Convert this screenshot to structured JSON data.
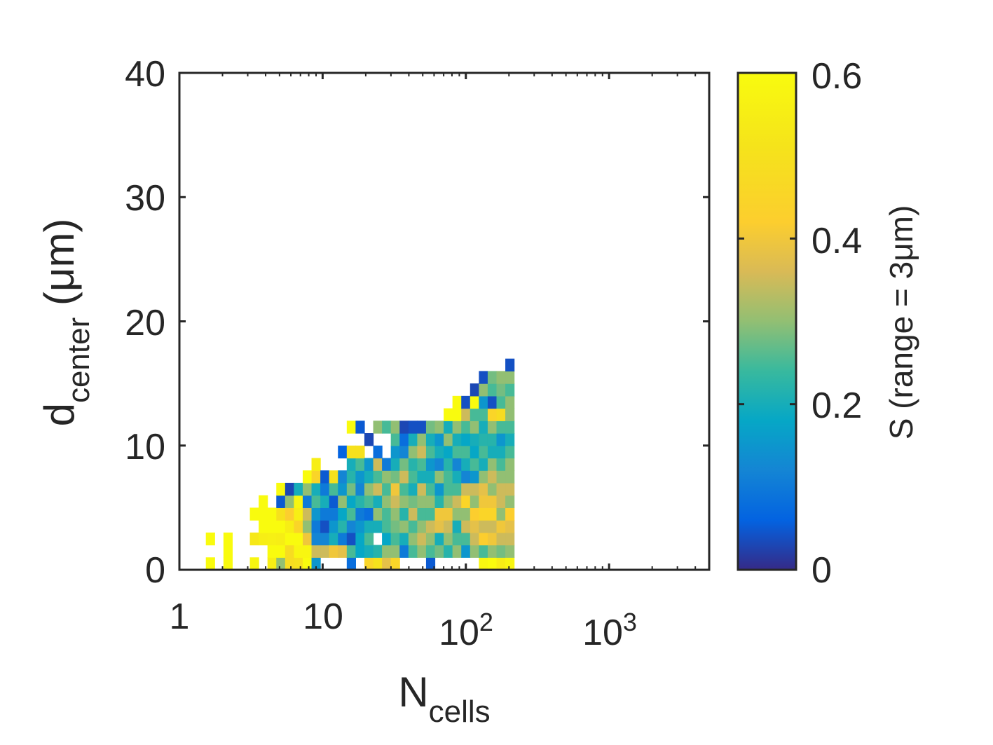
{
  "chart_data": {
    "type": "heatmap",
    "xscale": "log",
    "xlim": [
      1,
      5000
    ],
    "ylim": [
      0,
      40
    ],
    "grid": false,
    "xlabel": {
      "main": "N",
      "sub": "cells"
    },
    "ylabel": {
      "main": "d",
      "sub": "center",
      "unit": " (μm)"
    },
    "x_ticks": [
      {
        "value": 1,
        "label": "1",
        "sup": ""
      },
      {
        "value": 10,
        "label": "10",
        "sup": ""
      },
      {
        "value": 100,
        "label": "10",
        "sup": "2"
      },
      {
        "value": 1000,
        "label": "10",
        "sup": "3"
      }
    ],
    "y_ticks": [
      {
        "value": 0,
        "label": "0"
      },
      {
        "value": 10,
        "label": "10"
      },
      {
        "value": 20,
        "label": "20"
      },
      {
        "value": 30,
        "label": "30"
      },
      {
        "value": 40,
        "label": "40"
      }
    ],
    "colorbar": {
      "label": "S (range = 3μm)",
      "range": [
        0,
        0.6
      ],
      "ticks": [
        {
          "value": 0,
          "label": "0"
        },
        {
          "value": 0.2,
          "label": "0.2"
        },
        {
          "value": 0.4,
          "label": "0.4"
        },
        {
          "value": 0.6,
          "label": "0.6"
        }
      ],
      "colormap": "parula"
    },
    "bin_size": {
      "log10_n": 0.0615,
      "d_um": 1.0
    },
    "cells": [
      [
        3,
        0,
        0.6
      ],
      [
        3,
        2,
        0.6
      ],
      [
        5,
        0,
        0.6
      ],
      [
        5,
        1,
        0.6
      ],
      [
        5,
        2,
        0.6
      ],
      [
        8,
        0,
        0.58
      ],
      [
        8,
        2,
        0.53
      ],
      [
        8,
        4,
        0.6
      ],
      [
        9,
        2,
        0.55
      ],
      [
        9,
        3,
        0.6
      ],
      [
        9,
        4,
        0.6
      ],
      [
        9,
        5,
        0.6
      ],
      [
        10,
        0,
        0.55
      ],
      [
        10,
        1,
        0.6
      ],
      [
        10,
        2,
        0.56
      ],
      [
        10,
        3,
        0.6
      ],
      [
        10,
        4,
        0.6
      ],
      [
        11,
        0,
        0.3
      ],
      [
        11,
        1,
        0.6
      ],
      [
        11,
        2,
        0.55
      ],
      [
        11,
        3,
        0.6
      ],
      [
        11,
        4,
        0.5
      ],
      [
        11,
        5,
        0.05
      ],
      [
        11,
        6,
        0.6
      ],
      [
        12,
        0,
        0.48
      ],
      [
        12,
        1,
        0.48
      ],
      [
        12,
        2,
        0.6
      ],
      [
        12,
        3,
        0.55
      ],
      [
        12,
        4,
        0.42
      ],
      [
        12,
        5,
        0.3
      ],
      [
        12,
        6,
        0.03
      ],
      [
        13,
        0,
        0.5
      ],
      [
        13,
        1,
        0.58
      ],
      [
        13,
        2,
        0.6
      ],
      [
        13,
        3,
        0.45
      ],
      [
        13,
        4,
        0.55
      ],
      [
        13,
        5,
        0.58
      ],
      [
        13,
        6,
        0.2
      ],
      [
        14,
        0,
        0.6
      ],
      [
        14,
        1,
        0.58
      ],
      [
        14,
        2,
        0.4
      ],
      [
        14,
        3,
        0.3
      ],
      [
        14,
        4,
        0.35
      ],
      [
        14,
        5,
        0.1
      ],
      [
        14,
        6,
        0.3
      ],
      [
        14,
        7,
        0.6
      ],
      [
        15,
        0,
        0.15
      ],
      [
        15,
        1,
        0.35
      ],
      [
        15,
        2,
        0.12
      ],
      [
        15,
        3,
        0.1
      ],
      [
        15,
        4,
        0.15
      ],
      [
        15,
        5,
        0.25
      ],
      [
        15,
        6,
        0.2
      ],
      [
        15,
        7,
        0.45
      ],
      [
        15,
        8,
        0.55
      ],
      [
        16,
        1,
        0.35
      ],
      [
        16,
        2,
        0.12
      ],
      [
        16,
        3,
        0.04
      ],
      [
        16,
        4,
        0.1
      ],
      [
        16,
        5,
        0.2
      ],
      [
        16,
        6,
        0.1
      ],
      [
        16,
        7,
        0.05
      ],
      [
        17,
        1,
        0.4
      ],
      [
        17,
        2,
        0.2
      ],
      [
        17,
        3,
        0.15
      ],
      [
        17,
        4,
        0.1
      ],
      [
        17,
        5,
        0.05
      ],
      [
        17,
        6,
        0.25
      ],
      [
        17,
        7,
        0.5
      ],
      [
        18,
        1,
        0.38
      ],
      [
        18,
        2,
        0.1
      ],
      [
        18,
        3,
        0.22
      ],
      [
        18,
        4,
        0.18
      ],
      [
        18,
        5,
        0.3
      ],
      [
        18,
        6,
        0.15
      ],
      [
        18,
        7,
        0.12
      ],
      [
        18,
        9,
        0.06
      ],
      [
        19,
        0,
        0.08
      ],
      [
        19,
        1,
        0.25
      ],
      [
        19,
        2,
        0.04
      ],
      [
        19,
        3,
        0.12
      ],
      [
        19,
        4,
        0.25
      ],
      [
        19,
        5,
        0.18
      ],
      [
        19,
        6,
        0.28
      ],
      [
        19,
        7,
        0.22
      ],
      [
        19,
        8,
        0.2
      ],
      [
        19,
        9,
        0.5
      ],
      [
        19,
        11,
        0.6
      ],
      [
        20,
        1,
        0.18
      ],
      [
        20,
        2,
        0.18
      ],
      [
        20,
        3,
        0.15
      ],
      [
        20,
        4,
        0.1
      ],
      [
        20,
        5,
        0.22
      ],
      [
        20,
        6,
        0.12
      ],
      [
        20,
        7,
        0.15
      ],
      [
        20,
        8,
        0.25
      ],
      [
        20,
        9,
        0.5
      ],
      [
        20,
        11,
        0.05
      ],
      [
        21,
        0,
        0.45
      ],
      [
        21,
        1,
        0.2
      ],
      [
        21,
        2,
        0.25
      ],
      [
        21,
        3,
        0.2
      ],
      [
        21,
        4,
        0.08
      ],
      [
        21,
        5,
        0.25
      ],
      [
        21,
        6,
        0.3
      ],
      [
        21,
        7,
        0.2
      ],
      [
        21,
        8,
        0.15
      ],
      [
        21,
        10,
        0.03
      ],
      [
        22,
        0,
        0.5
      ],
      [
        22,
        1,
        0.22
      ],
      [
        22,
        3,
        0.2
      ],
      [
        22,
        4,
        0.3
      ],
      [
        22,
        5,
        0.2
      ],
      [
        22,
        6,
        0.35
      ],
      [
        22,
        7,
        0.25
      ],
      [
        22,
        8,
        0.35
      ],
      [
        22,
        9,
        0.08
      ],
      [
        22,
        11,
        0.3
      ],
      [
        23,
        0,
        0.38
      ],
      [
        23,
        1,
        0.3
      ],
      [
        23,
        2,
        0.18
      ],
      [
        23,
        3,
        0.25
      ],
      [
        23,
        4,
        0.25
      ],
      [
        23,
        5,
        0.3
      ],
      [
        23,
        6,
        0.25
      ],
      [
        23,
        7,
        0.3
      ],
      [
        23,
        8,
        0.1
      ],
      [
        23,
        11,
        0.25
      ],
      [
        24,
        0,
        0.45
      ],
      [
        24,
        1,
        0.3
      ],
      [
        24,
        2,
        0.25
      ],
      [
        24,
        3,
        0.28
      ],
      [
        24,
        4,
        0.3
      ],
      [
        24,
        5,
        0.35
      ],
      [
        24,
        6,
        0.4
      ],
      [
        24,
        7,
        0.28
      ],
      [
        24,
        8,
        0.2
      ],
      [
        24,
        9,
        0.15
      ],
      [
        24,
        10,
        0.25
      ],
      [
        24,
        11,
        0.3
      ],
      [
        25,
        1,
        0.1
      ],
      [
        25,
        2,
        0.2
      ],
      [
        25,
        3,
        0.3
      ],
      [
        25,
        4,
        0.22
      ],
      [
        25,
        5,
        0.3
      ],
      [
        25,
        6,
        0.25
      ],
      [
        25,
        7,
        0.35
      ],
      [
        25,
        8,
        0.28
      ],
      [
        25,
        9,
        0.12
      ],
      [
        25,
        10,
        0.08
      ],
      [
        25,
        11,
        0.03
      ],
      [
        26,
        1,
        0.25
      ],
      [
        26,
        2,
        0.3
      ],
      [
        26,
        3,
        0.25
      ],
      [
        26,
        4,
        0.35
      ],
      [
        26,
        5,
        0.28
      ],
      [
        26,
        6,
        0.2
      ],
      [
        26,
        7,
        0.25
      ],
      [
        26,
        8,
        0.22
      ],
      [
        26,
        9,
        0.3
      ],
      [
        26,
        10,
        0.2
      ],
      [
        26,
        11,
        0.04
      ],
      [
        27,
        1,
        0.3
      ],
      [
        27,
        2,
        0.35
      ],
      [
        27,
        3,
        0.3
      ],
      [
        27,
        4,
        0.25
      ],
      [
        27,
        5,
        0.3
      ],
      [
        27,
        6,
        0.35
      ],
      [
        27,
        7,
        0.2
      ],
      [
        27,
        8,
        0.25
      ],
      [
        27,
        9,
        0.35
      ],
      [
        27,
        10,
        0.3
      ],
      [
        27,
        11,
        0.04
      ],
      [
        28,
        0,
        0.05
      ],
      [
        28,
        1,
        0.25
      ],
      [
        28,
        2,
        0.3
      ],
      [
        28,
        3,
        0.35
      ],
      [
        28,
        4,
        0.25
      ],
      [
        28,
        5,
        0.3
      ],
      [
        28,
        6,
        0.25
      ],
      [
        28,
        7,
        0.2
      ],
      [
        28,
        8,
        0.15
      ],
      [
        28,
        9,
        0.25
      ],
      [
        28,
        10,
        0.2
      ],
      [
        28,
        11,
        0.28
      ],
      [
        29,
        1,
        0.28
      ],
      [
        29,
        2,
        0.2
      ],
      [
        29,
        3,
        0.38
      ],
      [
        29,
        4,
        0.4
      ],
      [
        29,
        5,
        0.22
      ],
      [
        29,
        6,
        0.15
      ],
      [
        29,
        7,
        0.3
      ],
      [
        29,
        8,
        0.12
      ],
      [
        29,
        9,
        0.2
      ],
      [
        29,
        10,
        0.15
      ],
      [
        29,
        11,
        0.3
      ],
      [
        30,
        1,
        0.22
      ],
      [
        30,
        2,
        0.3
      ],
      [
        30,
        3,
        0.35
      ],
      [
        30,
        4,
        0.4
      ],
      [
        30,
        5,
        0.3
      ],
      [
        30,
        6,
        0.25
      ],
      [
        30,
        7,
        0.25
      ],
      [
        30,
        8,
        0.22
      ],
      [
        30,
        9,
        0.18
      ],
      [
        30,
        10,
        0.3
      ],
      [
        30,
        11,
        0.2
      ],
      [
        30,
        12,
        0.6
      ],
      [
        31,
        1,
        0.3
      ],
      [
        31,
        2,
        0.25
      ],
      [
        31,
        3,
        0.2
      ],
      [
        31,
        4,
        0.3
      ],
      [
        31,
        5,
        0.35
      ],
      [
        31,
        6,
        0.25
      ],
      [
        31,
        7,
        0.2
      ],
      [
        31,
        8,
        0.12
      ],
      [
        31,
        9,
        0.25
      ],
      [
        31,
        10,
        0.2
      ],
      [
        31,
        11,
        0.3
      ],
      [
        31,
        12,
        0.6
      ],
      [
        31,
        13,
        0.6
      ],
      [
        32,
        1,
        0.15
      ],
      [
        32,
        2,
        0.25
      ],
      [
        32,
        3,
        0.35
      ],
      [
        32,
        4,
        0.3
      ],
      [
        32,
        5,
        0.45
      ],
      [
        32,
        6,
        0.35
      ],
      [
        32,
        7,
        0.12
      ],
      [
        32,
        8,
        0.2
      ],
      [
        32,
        9,
        0.25
      ],
      [
        32,
        10,
        0.18
      ],
      [
        32,
        11,
        0.25
      ],
      [
        32,
        12,
        0.35
      ],
      [
        32,
        13,
        0.04
      ],
      [
        33,
        1,
        0.3
      ],
      [
        33,
        2,
        0.35
      ],
      [
        33,
        3,
        0.38
      ],
      [
        33,
        4,
        0.42
      ],
      [
        33,
        5,
        0.3
      ],
      [
        33,
        6,
        0.35
      ],
      [
        33,
        7,
        0.15
      ],
      [
        33,
        8,
        0.25
      ],
      [
        33,
        9,
        0.18
      ],
      [
        33,
        10,
        0.2
      ],
      [
        33,
        11,
        0.3
      ],
      [
        33,
        12,
        0.25
      ],
      [
        33,
        13,
        0.6
      ],
      [
        33,
        14,
        0.03
      ],
      [
        34,
        0,
        0.58
      ],
      [
        34,
        1,
        0.25
      ],
      [
        34,
        2,
        0.42
      ],
      [
        34,
        3,
        0.35
      ],
      [
        34,
        4,
        0.45
      ],
      [
        34,
        5,
        0.4
      ],
      [
        34,
        6,
        0.38
      ],
      [
        34,
        7,
        0.3
      ],
      [
        34,
        8,
        0.2
      ],
      [
        34,
        9,
        0.25
      ],
      [
        34,
        10,
        0.22
      ],
      [
        34,
        11,
        0.2
      ],
      [
        34,
        12,
        0.25
      ],
      [
        34,
        13,
        0.15
      ],
      [
        34,
        14,
        0.3
      ],
      [
        34,
        15,
        0.04
      ],
      [
        35,
        0,
        0.6
      ],
      [
        35,
        1,
        0.3
      ],
      [
        35,
        2,
        0.4
      ],
      [
        35,
        3,
        0.35
      ],
      [
        35,
        4,
        0.45
      ],
      [
        35,
        5,
        0.4
      ],
      [
        35,
        6,
        0.3
      ],
      [
        35,
        7,
        0.35
      ],
      [
        35,
        8,
        0.3
      ],
      [
        35,
        9,
        0.2
      ],
      [
        35,
        10,
        0.22
      ],
      [
        35,
        11,
        0.3
      ],
      [
        35,
        12,
        0.45
      ],
      [
        35,
        13,
        0.04
      ],
      [
        35,
        14,
        0.25
      ],
      [
        35,
        15,
        0.28
      ],
      [
        36,
        0,
        0.55
      ],
      [
        36,
        1,
        0.28
      ],
      [
        36,
        2,
        0.35
      ],
      [
        36,
        3,
        0.4
      ],
      [
        36,
        4,
        0.3
      ],
      [
        36,
        5,
        0.35
      ],
      [
        36,
        6,
        0.35
      ],
      [
        36,
        7,
        0.3
      ],
      [
        36,
        8,
        0.25
      ],
      [
        36,
        9,
        0.2
      ],
      [
        36,
        10,
        0.15
      ],
      [
        36,
        11,
        0.25
      ],
      [
        36,
        12,
        0.48
      ],
      [
        36,
        13,
        0.25
      ],
      [
        36,
        14,
        0.28
      ],
      [
        36,
        15,
        0.3
      ],
      [
        37,
        0,
        0.58
      ],
      [
        37,
        1,
        0.3
      ],
      [
        37,
        2,
        0.35
      ],
      [
        37,
        3,
        0.38
      ],
      [
        37,
        4,
        0.42
      ],
      [
        37,
        5,
        0.3
      ],
      [
        37,
        6,
        0.35
      ],
      [
        37,
        7,
        0.3
      ],
      [
        37,
        8,
        0.3
      ],
      [
        37,
        9,
        0.25
      ],
      [
        37,
        10,
        0.2
      ],
      [
        37,
        11,
        0.25
      ],
      [
        37,
        12,
        0.3
      ],
      [
        37,
        13,
        0.3
      ],
      [
        37,
        14,
        0.25
      ],
      [
        37,
        15,
        0.3
      ],
      [
        37,
        16,
        0.04
      ]
    ]
  }
}
